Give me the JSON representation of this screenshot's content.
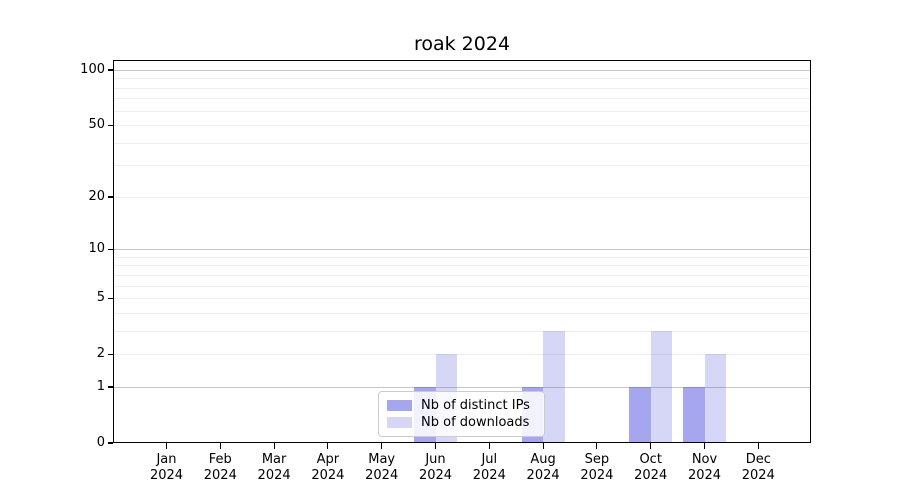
{
  "chart_data": {
    "type": "bar",
    "title": "roak 2024",
    "xlabel": "",
    "ylabel": "",
    "categories": [
      "Jan",
      "Feb",
      "Mar",
      "Apr",
      "May",
      "Jun",
      "Jul",
      "Aug",
      "Sep",
      "Oct",
      "Nov",
      "Dec"
    ],
    "category_year": "2024",
    "series": [
      {
        "name": "Nb of distinct IPs",
        "base_color": "#5c5ce0",
        "fill": "rgba(92,92,224,0.55)",
        "values": [
          0,
          0,
          0,
          0,
          0,
          1,
          0,
          1,
          0,
          1,
          1,
          0
        ]
      },
      {
        "name": "Nb of downloads",
        "base_color": "#5c5ce0",
        "fill": "rgba(92,92,224,0.25)",
        "values": [
          0,
          0,
          0,
          0,
          0,
          2,
          0,
          3,
          0,
          3,
          2,
          0
        ]
      }
    ],
    "yscale": "log10(1+value)",
    "ylim": [
      0,
      113
    ],
    "ytick_values": [
      0,
      1,
      2,
      5,
      10,
      20,
      50,
      100
    ],
    "ytick_labels": [
      "0",
      "1",
      "2",
      "5",
      "10",
      "20",
      "50",
      "100"
    ],
    "gridlines_major": [
      1,
      10,
      100
    ],
    "gridlines_minor": [
      2,
      3,
      4,
      5,
      6,
      7,
      8,
      9,
      20,
      30,
      40,
      50,
      60,
      70,
      80,
      90
    ],
    "grid": "on",
    "legend": {
      "position": "lower-center",
      "entries": [
        "Nb of distinct IPs",
        "Nb of downloads"
      ]
    },
    "colors": {
      "background": "#ffffff",
      "axis": "#000000",
      "grid_major": "#c6c6c6",
      "grid_minor": "#ededed",
      "legend_border": "#cccccc"
    }
  }
}
